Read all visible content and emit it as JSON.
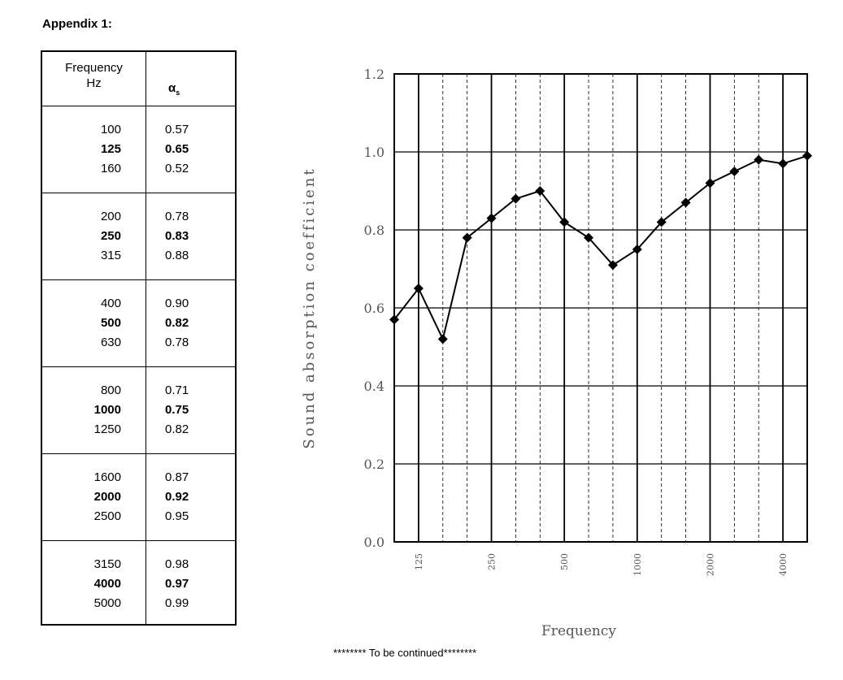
{
  "appendix_title": "Appendix 1:",
  "table": {
    "header_frequency_line1": "Frequency",
    "header_frequency_line2": "Hz",
    "header_alpha_symbol": "α",
    "header_alpha_sub": "s",
    "groups": [
      {
        "rows": [
          {
            "freq": "100",
            "alpha": "0.57",
            "bold": false
          },
          {
            "freq": "125",
            "alpha": "0.65",
            "bold": true
          },
          {
            "freq": "160",
            "alpha": "0.52",
            "bold": false
          }
        ]
      },
      {
        "rows": [
          {
            "freq": "200",
            "alpha": "0.78",
            "bold": false
          },
          {
            "freq": "250",
            "alpha": "0.83",
            "bold": true
          },
          {
            "freq": "315",
            "alpha": "0.88",
            "bold": false
          }
        ]
      },
      {
        "rows": [
          {
            "freq": "400",
            "alpha": "0.90",
            "bold": false
          },
          {
            "freq": "500",
            "alpha": "0.82",
            "bold": true
          },
          {
            "freq": "630",
            "alpha": "0.78",
            "bold": false
          }
        ]
      },
      {
        "rows": [
          {
            "freq": "800",
            "alpha": "0.71",
            "bold": false
          },
          {
            "freq": "1000",
            "alpha": "0.75",
            "bold": true
          },
          {
            "freq": "1250",
            "alpha": "0.82",
            "bold": false
          }
        ]
      },
      {
        "rows": [
          {
            "freq": "1600",
            "alpha": "0.87",
            "bold": false
          },
          {
            "freq": "2000",
            "alpha": "0.92",
            "bold": true
          },
          {
            "freq": "2500",
            "alpha": "0.95",
            "bold": false
          }
        ]
      },
      {
        "rows": [
          {
            "freq": "3150",
            "alpha": "0.98",
            "bold": false
          },
          {
            "freq": "4000",
            "alpha": "0.97",
            "bold": true
          },
          {
            "freq": "5000",
            "alpha": "0.99",
            "bold": false
          }
        ]
      }
    ]
  },
  "chart_data": {
    "type": "line",
    "x": [
      "100",
      "125",
      "160",
      "200",
      "250",
      "315",
      "400",
      "500",
      "630",
      "800",
      "1000",
      "1250",
      "1600",
      "2000",
      "2500",
      "3150",
      "4000",
      "5000"
    ],
    "values": [
      0.57,
      0.65,
      0.52,
      0.78,
      0.83,
      0.88,
      0.9,
      0.82,
      0.78,
      0.71,
      0.75,
      0.82,
      0.87,
      0.92,
      0.95,
      0.98,
      0.97,
      0.99
    ],
    "x_tick_labels": [
      "125",
      "250",
      "500",
      "1000",
      "2000",
      "4000"
    ],
    "y_tick_labels": [
      "0.0",
      "0.2",
      "0.4",
      "0.6",
      "0.8",
      "1.0",
      "1.2"
    ],
    "ylim": [
      0,
      1.2
    ],
    "xlabel": "Frequency",
    "ylabel": "Sound absorption coefficient",
    "x_scale": "log (one-third octave bands)",
    "grid": true,
    "marker": "diamond",
    "line_color": "#000000"
  },
  "footer_note": "******** To be continued********"
}
